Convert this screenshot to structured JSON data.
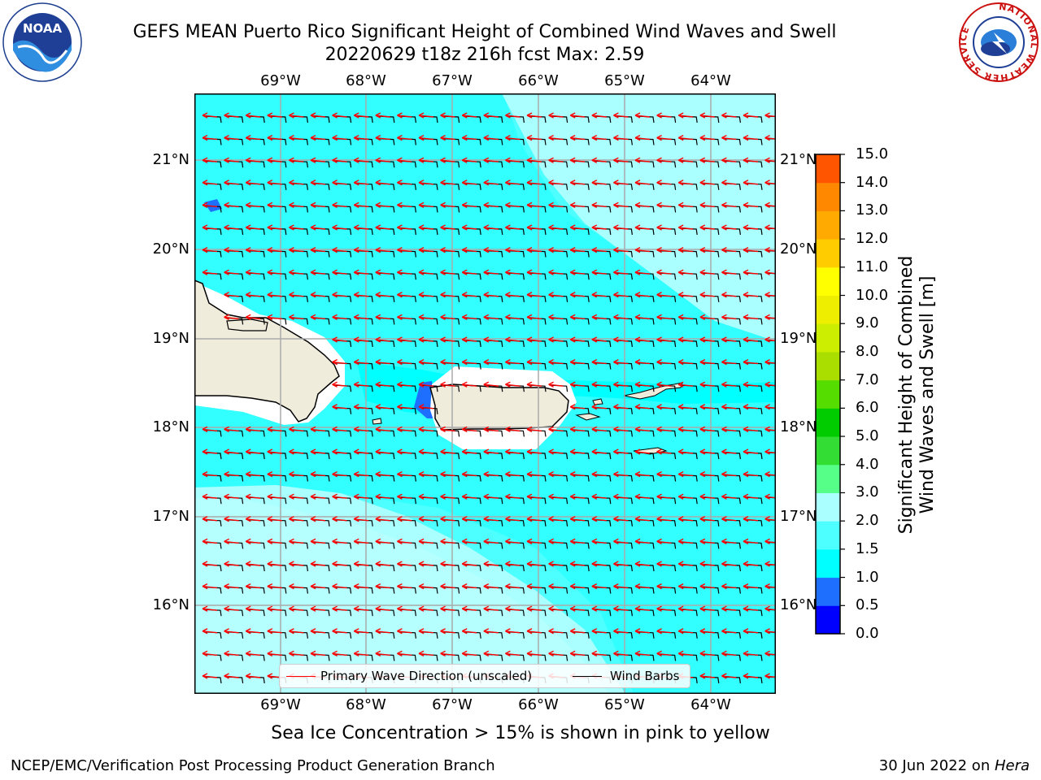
{
  "header": {
    "title": "GEFS MEAN Puerto Rico Significant Height of Combined Wind Waves and Swell",
    "subtitle": "20220629 t18z 216h fcst   Max: 2.59"
  },
  "logos": {
    "left": "NOAA",
    "right_ring": "NATIONAL WEATHER SERVICE"
  },
  "map": {
    "lon_labels": [
      "69°W",
      "68°W",
      "67°W",
      "66°W",
      "65°W",
      "64°W"
    ],
    "lat_labels": [
      "21°N",
      "20°N",
      "19°N",
      "18°N",
      "17°N",
      "16°N"
    ],
    "colors": {
      "land": "#efecdc",
      "coast": "#000000",
      "grid": "#aaaaaa",
      "wave_arrow": "#ff0000",
      "barb": "#000000"
    }
  },
  "legend": {
    "wave_label": "Primary Wave Direction (unscaled)",
    "barb_label": "Wind Barbs"
  },
  "colorbar": {
    "title_line1": "Significant Height of Combined",
    "title_line2": "Wind Waves and Swell [m]",
    "ticks": [
      "15.0",
      "14.0",
      "13.0",
      "12.0",
      "11.0",
      "10.0",
      "9.0",
      "8.0",
      "7.0",
      "6.0",
      "5.0",
      "4.0",
      "3.0",
      "2.0",
      "1.5",
      "1.0",
      "0.5",
      "0.0"
    ],
    "colors": [
      "#0000ff",
      "#1f6fff",
      "#00ffff",
      "#4dffff",
      "#aaffff",
      "#55ff88",
      "#33dd33",
      "#00cc00",
      "#55dd00",
      "#aadd00",
      "#ccee00",
      "#eeee00",
      "#ffff00",
      "#ffcc00",
      "#ffaa00",
      "#ff8800",
      "#ff5500",
      "#ff2200",
      "#ff0000"
    ]
  },
  "footnote": "Sea Ice Concentration > 15% is shown in pink to yellow",
  "credit_left": "NCEP/EMC/Verification Post Processing Product Generation Branch",
  "credit_right_prefix": "30 Jun 2022 on ",
  "credit_right_host": "Hera"
}
